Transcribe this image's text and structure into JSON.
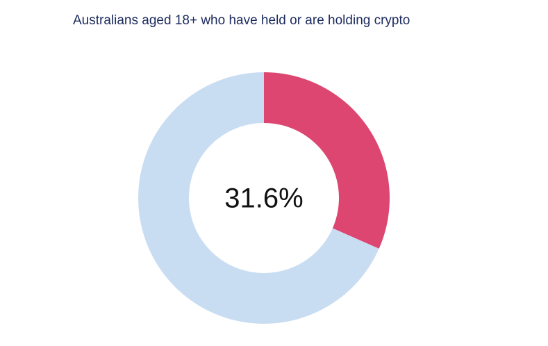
{
  "chart_data": {
    "type": "donut",
    "title": "Australians aged 18+ who have held or are holding crypto",
    "values": [
      31.6,
      68.4
    ],
    "value_labels": [
      "31.6%",
      null
    ],
    "colors": [
      "#dc4670",
      "#c9ddf2"
    ]
  }
}
